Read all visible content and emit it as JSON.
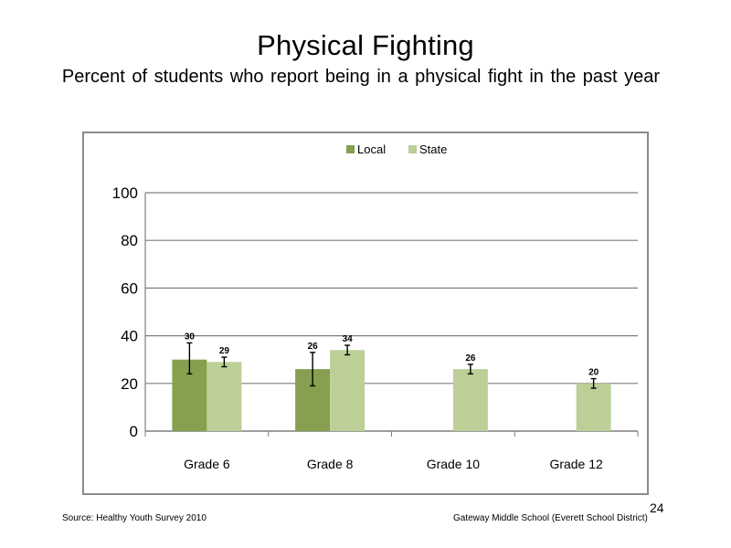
{
  "slide": {
    "title": "Physical Fighting",
    "subtitle": "Percent of students who report being in a physical fight in the past year",
    "page_number": "24",
    "source": "Source: Healthy Youth Survey 2010",
    "organization": "Gateway Middle School (Everett School District)"
  },
  "chart_data": {
    "type": "bar",
    "categories": [
      "Grade 6",
      "Grade 8",
      "Grade 10",
      "Grade 12"
    ],
    "series": [
      {
        "name": "Local",
        "color": "#86a04f",
        "values": [
          30,
          26,
          null,
          null
        ],
        "labels": [
          "30",
          "26",
          "",
          ""
        ],
        "error_low": [
          24,
          19,
          null,
          null
        ],
        "error_high": [
          37,
          33,
          null,
          null
        ]
      },
      {
        "name": "State",
        "color": "#bccf97",
        "values": [
          29,
          34,
          26,
          20
        ],
        "labels": [
          "29",
          "34",
          "26",
          "20"
        ],
        "error_low": [
          27,
          32,
          24,
          18
        ],
        "error_high": [
          31,
          36,
          28,
          22
        ]
      }
    ],
    "ylim": [
      0,
      100
    ],
    "yticks": [
      "0",
      "20",
      "40",
      "60",
      "80",
      "100"
    ],
    "ytick_values": [
      0,
      20,
      40,
      60,
      80,
      100
    ],
    "grid": true,
    "legend_position": "top-center"
  }
}
